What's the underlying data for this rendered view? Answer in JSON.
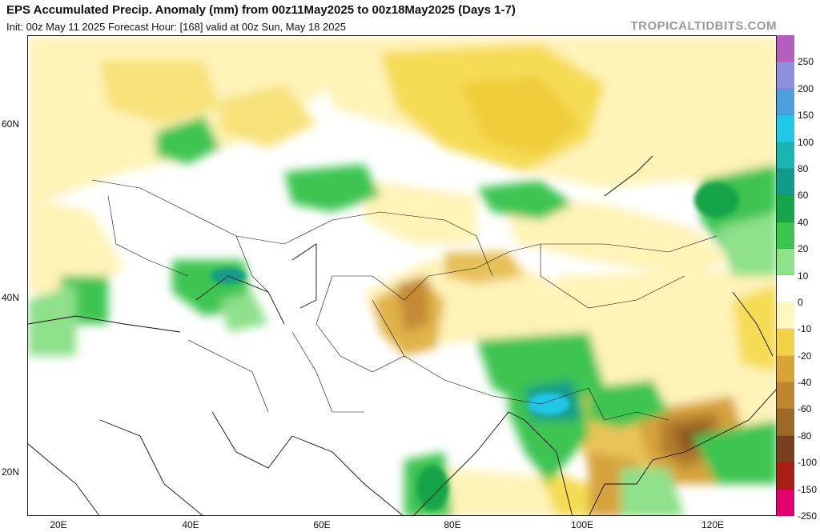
{
  "header": {
    "title": "EPS Accumulated Precip. Anomaly (mm) from 00z11May2025 to 00z18May2025 (Days 1-7)",
    "subtitle": "Init: 00z May 11 2025   Forecast Hour: [168]   valid at 00z Sun, May 18 2025",
    "brand": "TROPICALTIDBITS.COM"
  },
  "map": {
    "lat_labels": [
      "60N",
      "40N",
      "20N"
    ],
    "lon_labels": [
      "20E",
      "40E",
      "60E",
      "80E",
      "100E",
      "120E"
    ]
  },
  "legend": {
    "labels": [
      "250",
      "200",
      "150",
      "100",
      "80",
      "60",
      "40",
      "20",
      "10",
      "0",
      "-10",
      "-20",
      "-40",
      "-60",
      "-80",
      "-100",
      "-150",
      "-250"
    ],
    "colors": [
      "#b35fbf",
      "#8f8fdf",
      "#4f9fe0",
      "#22c6e6",
      "#1ab5b0",
      "#129b8a",
      "#17a44a",
      "#3dc451",
      "#8ee08a",
      "#ffffff",
      "#fff7c0",
      "#f3d04a",
      "#d8a43a",
      "#bf8631",
      "#9c6a28",
      "#7a3f20",
      "#a81d14",
      "#e2006e"
    ],
    "ticks": [
      "250",
      "200",
      "150",
      "100",
      "80",
      "60",
      "40",
      "20",
      "10",
      "0",
      "-10",
      "-20",
      "-40",
      "-60",
      "-80",
      "-100",
      "-150",
      "-250"
    ]
  }
}
